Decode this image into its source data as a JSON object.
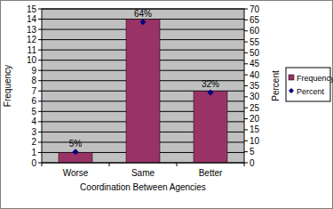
{
  "chart_data": {
    "type": "bar",
    "x_label": "Coordination Between Agencies",
    "y_label": "Frequency",
    "y2_label": "Percent",
    "categories": [
      "Worse",
      "Same",
      "Better"
    ],
    "series": [
      {
        "name": "Frequency",
        "type": "bar",
        "color": "#993366",
        "values": [
          1,
          14,
          7
        ]
      },
      {
        "name": "Percent",
        "type": "scatter",
        "marker": "diamond",
        "color": "#000080",
        "axis": "y2",
        "values": [
          5,
          64,
          32
        ],
        "value_labels": [
          "5%",
          "64%",
          "32%"
        ]
      }
    ],
    "ylim": [
      0,
      15
    ],
    "yticks": [
      0,
      1,
      2,
      3,
      4,
      5,
      6,
      7,
      8,
      9,
      10,
      11,
      12,
      13,
      14,
      15
    ],
    "y2lim": [
      0,
      70
    ],
    "y2ticks": [
      0,
      5,
      10,
      15,
      20,
      25,
      30,
      35,
      40,
      45,
      50,
      55,
      60,
      65,
      70
    ],
    "grid": true,
    "legend": "right",
    "data_labels": true
  }
}
